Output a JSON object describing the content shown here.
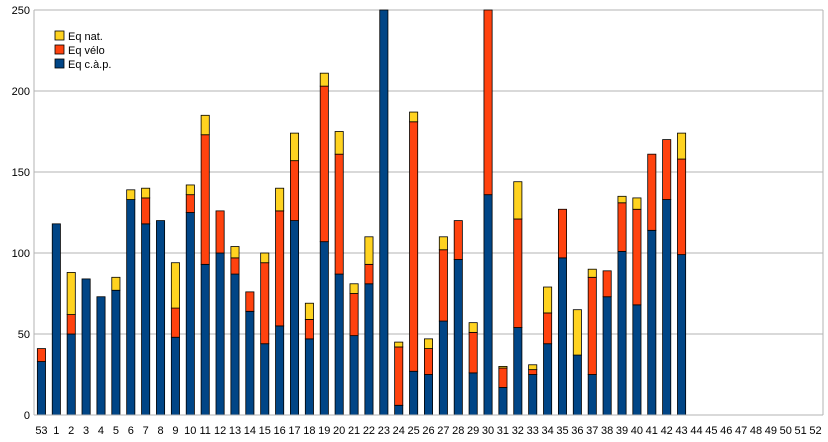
{
  "chart_data": {
    "type": "bar",
    "stacked": true,
    "title": "",
    "xlabel": "",
    "ylabel": "",
    "ylim": [
      0,
      250
    ],
    "yticks": [
      0,
      50,
      100,
      150,
      200,
      250
    ],
    "grid": true,
    "legend_position": "top-left",
    "categories": [
      "53",
      "1",
      "2",
      "3",
      "4",
      "5",
      "6",
      "7",
      "8",
      "9",
      "10",
      "11",
      "12",
      "13",
      "14",
      "15",
      "16",
      "17",
      "18",
      "19",
      "20",
      "21",
      "22",
      "23",
      "24",
      "25",
      "26",
      "27",
      "28",
      "29",
      "30",
      "31",
      "32",
      "33",
      "34",
      "35",
      "36",
      "37",
      "38",
      "39",
      "40",
      "41",
      "42",
      "43",
      "44",
      "45",
      "46",
      "47",
      "48",
      "49",
      "50",
      "51",
      "52"
    ],
    "series": [
      {
        "name": "Eq c.à.p.",
        "color": "#004586",
        "values": [
          33,
          118,
          50,
          84,
          73,
          77,
          133,
          118,
          120,
          48,
          125,
          93,
          100,
          87,
          64,
          44,
          55,
          120,
          47,
          107,
          87,
          49,
          81,
          250,
          6,
          27,
          25,
          58,
          96,
          26,
          136,
          17,
          54,
          25,
          44,
          97,
          37,
          25,
          73,
          101,
          68,
          114,
          133,
          99,
          0,
          0,
          0,
          0,
          0,
          0,
          0,
          0,
          0
        ]
      },
      {
        "name": "Eq vélo",
        "color": "#ff420e",
        "values": [
          8,
          0,
          12,
          0,
          0,
          0,
          0,
          16,
          0,
          18,
          11,
          80,
          26,
          10,
          12,
          50,
          71,
          37,
          12,
          96,
          74,
          26,
          12,
          0,
          36,
          154,
          16,
          44,
          24,
          25,
          114,
          12,
          67,
          3,
          19,
          30,
          0,
          60,
          16,
          30,
          59,
          47,
          37,
          59,
          0,
          0,
          0,
          0,
          0,
          0,
          0,
          0,
          0
        ]
      },
      {
        "name": "Eq nat.",
        "color": "#ffd320",
        "values": [
          0,
          0,
          26,
          0,
          0,
          8,
          6,
          6,
          0,
          28,
          6,
          12,
          0,
          7,
          0,
          6,
          14,
          17,
          10,
          8,
          14,
          6,
          17,
          0,
          3,
          6,
          6,
          8,
          0,
          6,
          0,
          1,
          23,
          3,
          16,
          0,
          28,
          5,
          0,
          4,
          7,
          0,
          0,
          16,
          0,
          0,
          0,
          0,
          0,
          0,
          0,
          0,
          0
        ]
      }
    ]
  }
}
